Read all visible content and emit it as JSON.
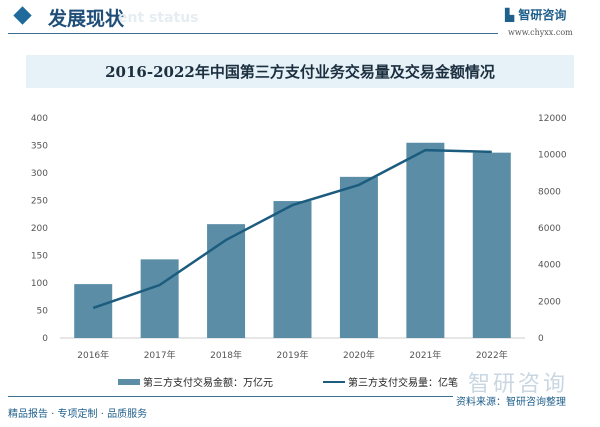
{
  "header": {
    "title": "发展现状",
    "ghost": "ent status",
    "logo": "智研咨询",
    "url": "www.chyxx.com"
  },
  "chart_data": {
    "type": "bar",
    "title": "2016-2022年中国第三方支付业务交易量及交易金额情况",
    "categories": [
      "2016年",
      "2017年",
      "2018年",
      "2019年",
      "2020年",
      "2021年",
      "2022年"
    ],
    "series": [
      {
        "name": "第三方支付交易金额：万亿元",
        "type": "bar",
        "axis": "left",
        "values": [
          98,
          143,
          207,
          249,
          293,
          355,
          337
        ]
      },
      {
        "name": "第三方支付交易量：亿笔",
        "type": "line",
        "axis": "right",
        "values": [
          1640,
          2890,
          5350,
          7250,
          8350,
          10250,
          10150
        ]
      }
    ],
    "ylim": [
      0,
      400
    ],
    "yticks": [
      0,
      50,
      100,
      150,
      200,
      250,
      300,
      350,
      400
    ],
    "y2lim": [
      0,
      12000
    ],
    "y2ticks": [
      0,
      2000,
      4000,
      6000,
      8000,
      10000,
      12000
    ],
    "legend": "bottom",
    "grid": false,
    "colors": {
      "bar": "#5b8ea6",
      "line": "#1c5c7e"
    }
  },
  "source": "资料来源：智研咨询整理",
  "watermark": "智研咨询",
  "footer": "精品报告 · 专项定制 · 品质服务"
}
